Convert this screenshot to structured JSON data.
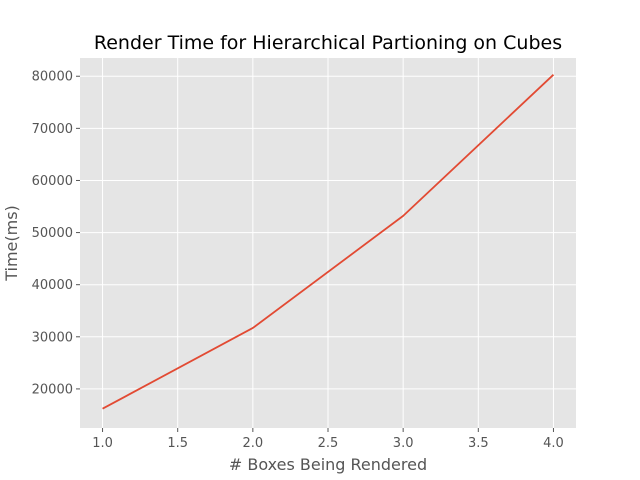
{
  "chart_data": {
    "type": "line",
    "title": "Render Time for Hierarchical Partioning on Cubes",
    "xlabel": "# Boxes Being Rendered",
    "ylabel": "Time(ms)",
    "x": [
      1.0,
      2.0,
      3.0,
      4.0
    ],
    "series": [
      {
        "name": "",
        "color": "#E24A33",
        "values": [
          16200,
          31700,
          53200,
          80300
        ]
      }
    ],
    "xlim": [
      0.85,
      4.15
    ],
    "ylim": [
      12500,
      83500
    ],
    "x_ticks": [
      1.0,
      1.5,
      2.0,
      2.5,
      3.0,
      3.5,
      4.0
    ],
    "x_tick_labels": [
      "1.0",
      "1.5",
      "2.0",
      "2.5",
      "3.0",
      "3.5",
      "4.0"
    ],
    "y_ticks": [
      20000,
      30000,
      40000,
      50000,
      60000,
      70000,
      80000
    ],
    "y_tick_labels": [
      "20000",
      "30000",
      "40000",
      "50000",
      "60000",
      "70000",
      "80000"
    ],
    "grid": true,
    "style": {
      "plot_background": "#E5E5E5",
      "grid_color": "#FFFFFF",
      "tick_label_color": "#555555",
      "title_color": "#000000"
    }
  }
}
